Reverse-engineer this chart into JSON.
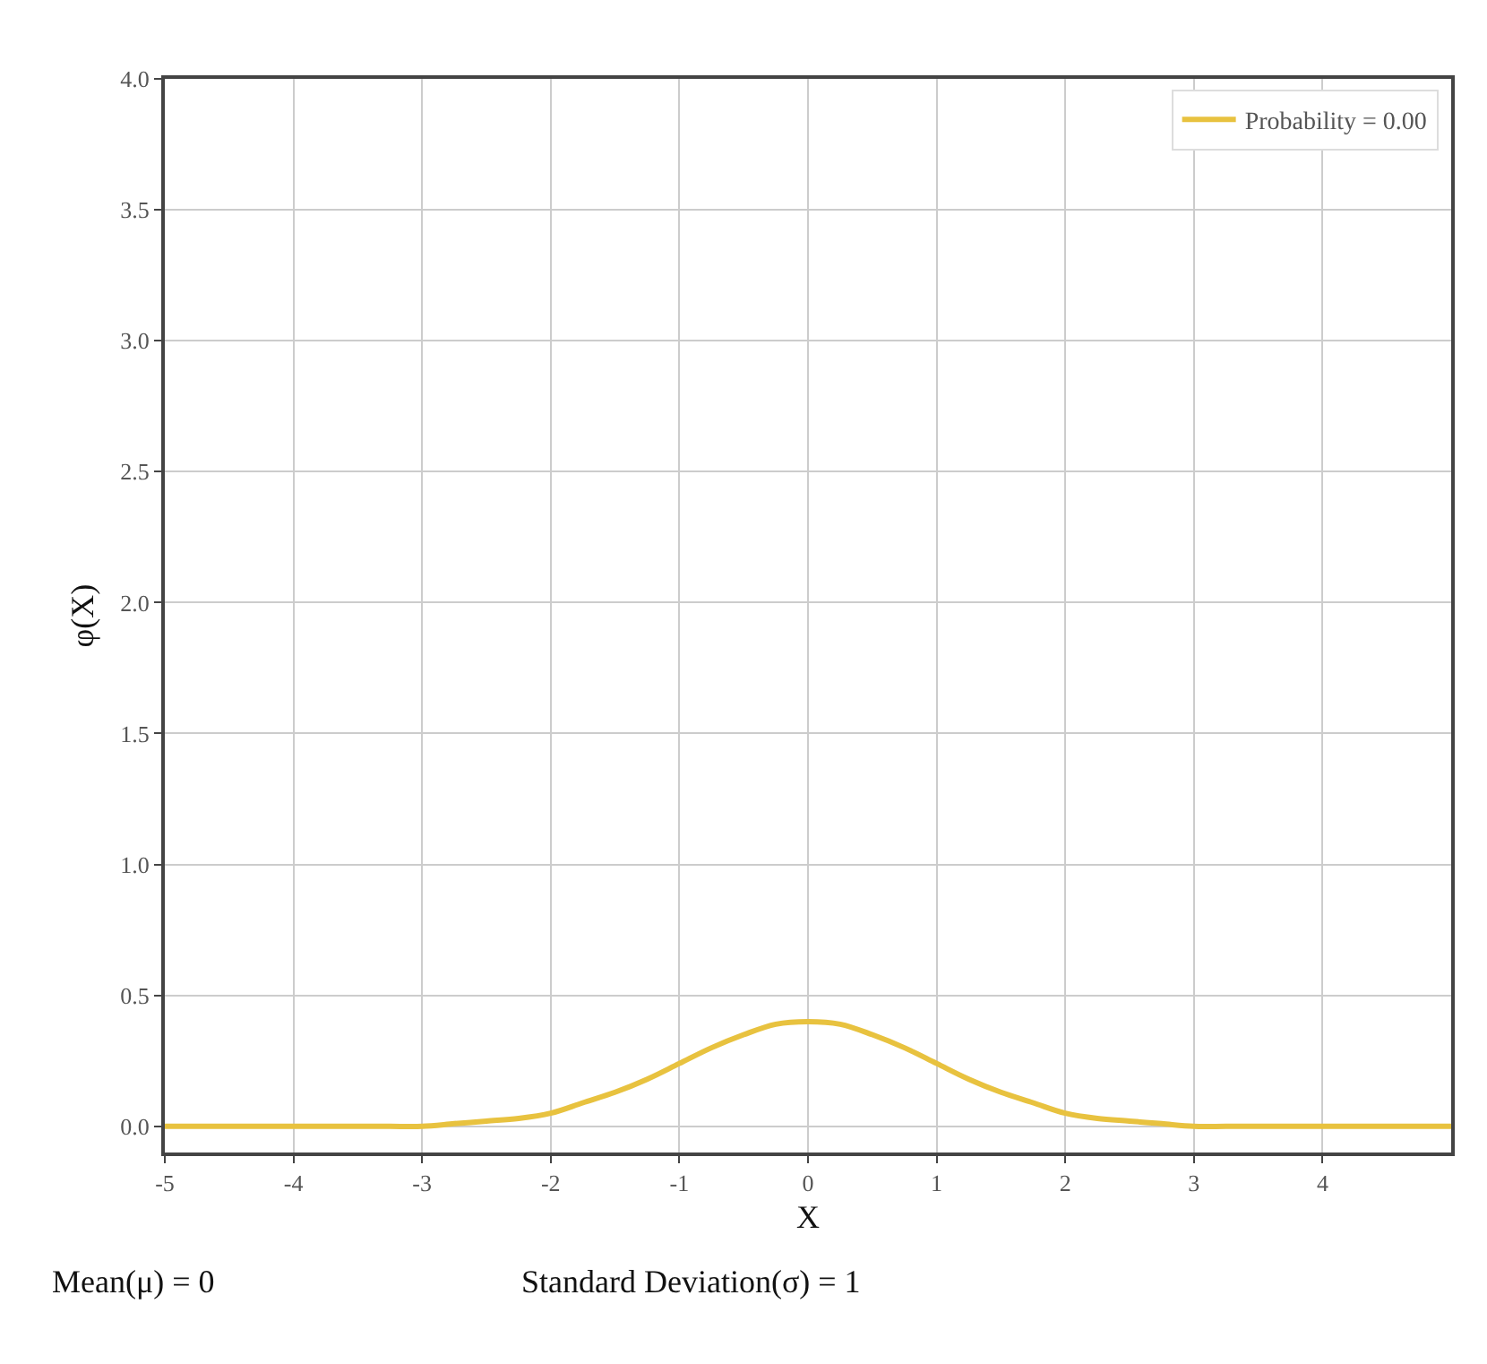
{
  "chart_data": {
    "type": "line",
    "xlabel": "X",
    "ylabel": "φ(X)",
    "x": [
      -5,
      -4.75,
      -4.5,
      -4.25,
      -4,
      -3.75,
      -3.5,
      -3.25,
      -3,
      -2.75,
      -2.5,
      -2.25,
      -2,
      -1.75,
      -1.5,
      -1.25,
      -1,
      -0.75,
      -0.5,
      -0.25,
      0,
      0.25,
      0.5,
      0.75,
      1,
      1.25,
      1.5,
      1.75,
      2,
      2.25,
      2.5,
      2.75,
      3,
      3.25,
      3.5,
      3.75,
      4,
      4.25,
      4.5,
      4.75,
      5
    ],
    "series": [
      {
        "name": "Probability = 0.00",
        "color": "#e8c23f",
        "values": [
          0,
          0,
          0,
          0,
          0,
          0,
          0,
          0,
          0,
          0.01,
          0.02,
          0.03,
          0.05,
          0.09,
          0.13,
          0.18,
          0.24,
          0.3,
          0.35,
          0.39,
          0.4,
          0.39,
          0.35,
          0.3,
          0.24,
          0.18,
          0.13,
          0.09,
          0.05,
          0.03,
          0.02,
          0.01,
          0,
          0,
          0,
          0,
          0,
          0,
          0,
          0,
          0
        ]
      }
    ],
    "xlim": [
      -5,
      5
    ],
    "xticks": [
      -5,
      -4,
      -3,
      -2,
      -1,
      0,
      1,
      2,
      3,
      4
    ],
    "ylim": [
      -0.1,
      4.0
    ],
    "yticks": [
      {
        "value": 0,
        "label": "0.0"
      },
      {
        "value": 0.5,
        "label": "0.5"
      },
      {
        "value": 1,
        "label": "1.0"
      },
      {
        "value": 1.5,
        "label": "1.5"
      },
      {
        "value": 2,
        "label": "2.0"
      },
      {
        "value": 2.5,
        "label": "2.5"
      },
      {
        "value": 3,
        "label": "3.0"
      },
      {
        "value": 3.5,
        "label": "3.5"
      },
      {
        "value": 4,
        "label": "4.0"
      }
    ],
    "grid": true,
    "legend": "top right",
    "marker": "none",
    "line_style": "solid",
    "annotations": [
      "Mean(μ) = 0",
      "Standard Deviation(σ) = 1"
    ]
  }
}
